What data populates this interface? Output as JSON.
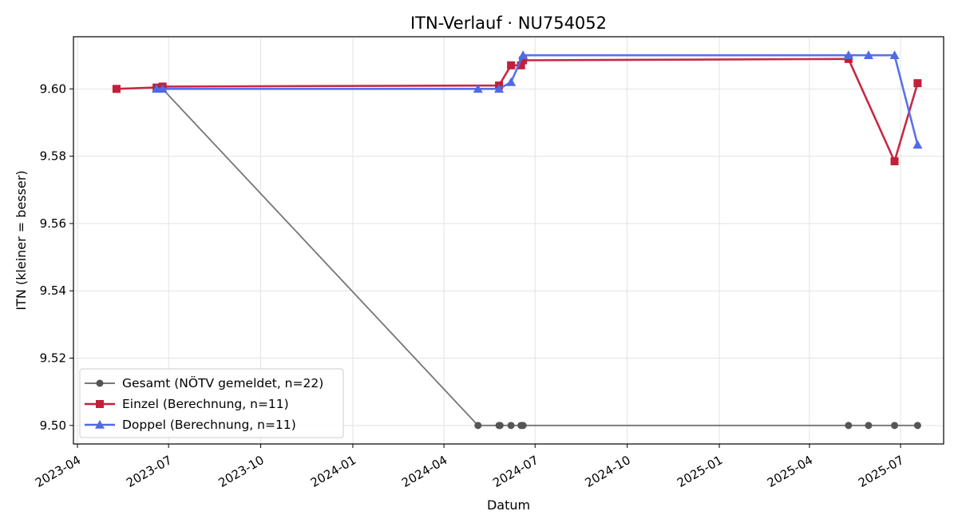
{
  "chart_data": {
    "type": "line",
    "title": "ITN-Verlauf · NU754052",
    "xlabel": "Datum",
    "ylabel": "ITN  (kleiner = besser)",
    "x_axis_type": "date",
    "xlim": [
      "2023-03-28",
      "2025-08-13"
    ],
    "ylim": [
      9.4945,
      9.6155
    ],
    "grid": true,
    "legend_position": "lower-left",
    "x_ticks": [
      {
        "date": "2023-04-01",
        "label": "2023-04"
      },
      {
        "date": "2023-07-01",
        "label": "2023-07"
      },
      {
        "date": "2023-10-01",
        "label": "2023-10"
      },
      {
        "date": "2024-01-01",
        "label": "2024-01"
      },
      {
        "date": "2024-04-01",
        "label": "2024-04"
      },
      {
        "date": "2024-07-01",
        "label": "2024-07"
      },
      {
        "date": "2024-10-01",
        "label": "2024-10"
      },
      {
        "date": "2025-01-01",
        "label": "2025-01"
      },
      {
        "date": "2025-04-01",
        "label": "2025-04"
      },
      {
        "date": "2025-07-01",
        "label": "2025-07"
      }
    ],
    "y_ticks": [
      {
        "value": 9.5,
        "label": "9.50"
      },
      {
        "value": 9.52,
        "label": "9.52"
      },
      {
        "value": 9.54,
        "label": "9.54"
      },
      {
        "value": 9.56,
        "label": "9.56"
      },
      {
        "value": 9.58,
        "label": "9.58"
      },
      {
        "value": 9.6,
        "label": "9.60"
      }
    ],
    "series": [
      {
        "name": "Gesamt (NÖTV gemeldet, n=22)",
        "color": "#666666",
        "marker": "circle",
        "points": [
          {
            "x": "2023-06-19",
            "y": 9.6
          },
          {
            "x": "2023-06-25",
            "y": 9.6
          },
          {
            "x": "2024-05-05",
            "y": 9.5
          },
          {
            "x": "2024-05-26",
            "y": 9.5
          },
          {
            "x": "2024-05-27",
            "y": 9.5
          },
          {
            "x": "2024-06-07",
            "y": 9.5
          },
          {
            "x": "2024-06-17",
            "y": 9.5
          },
          {
            "x": "2024-06-19",
            "y": 9.5
          },
          {
            "x": "2025-05-10",
            "y": 9.5
          },
          {
            "x": "2025-05-30",
            "y": 9.5
          },
          {
            "x": "2025-06-25",
            "y": 9.5
          },
          {
            "x": "2025-07-18",
            "y": 9.5
          }
        ]
      },
      {
        "name": "Einzel (Berechnung, n=11)",
        "color": "#c41e3a",
        "marker": "square",
        "points": [
          {
            "x": "2023-05-10",
            "y": 9.6
          },
          {
            "x": "2023-06-19",
            "y": 9.6004
          },
          {
            "x": "2023-06-25",
            "y": 9.6007
          },
          {
            "x": "2024-05-26",
            "y": 9.601
          },
          {
            "x": "2024-06-07",
            "y": 9.607
          },
          {
            "x": "2024-06-17",
            "y": 9.607
          },
          {
            "x": "2024-06-19",
            "y": 9.6085
          },
          {
            "x": "2025-05-10",
            "y": 9.6089
          },
          {
            "x": "2025-06-25",
            "y": 9.5785
          },
          {
            "x": "2025-07-18",
            "y": 9.6017
          }
        ]
      },
      {
        "name": "Doppel (Berechnung, n=11)",
        "color": "#4f6ae8",
        "marker": "triangle",
        "points": [
          {
            "x": "2023-06-19",
            "y": 9.6
          },
          {
            "x": "2023-06-25",
            "y": 9.6
          },
          {
            "x": "2024-05-05",
            "y": 9.6
          },
          {
            "x": "2024-05-26",
            "y": 9.6
          },
          {
            "x": "2024-06-07",
            "y": 9.602
          },
          {
            "x": "2024-06-19",
            "y": 9.61
          },
          {
            "x": "2025-05-10",
            "y": 9.61
          },
          {
            "x": "2025-05-30",
            "y": 9.61
          },
          {
            "x": "2025-06-25",
            "y": 9.61
          },
          {
            "x": "2025-07-18",
            "y": 9.5834
          }
        ]
      }
    ]
  }
}
